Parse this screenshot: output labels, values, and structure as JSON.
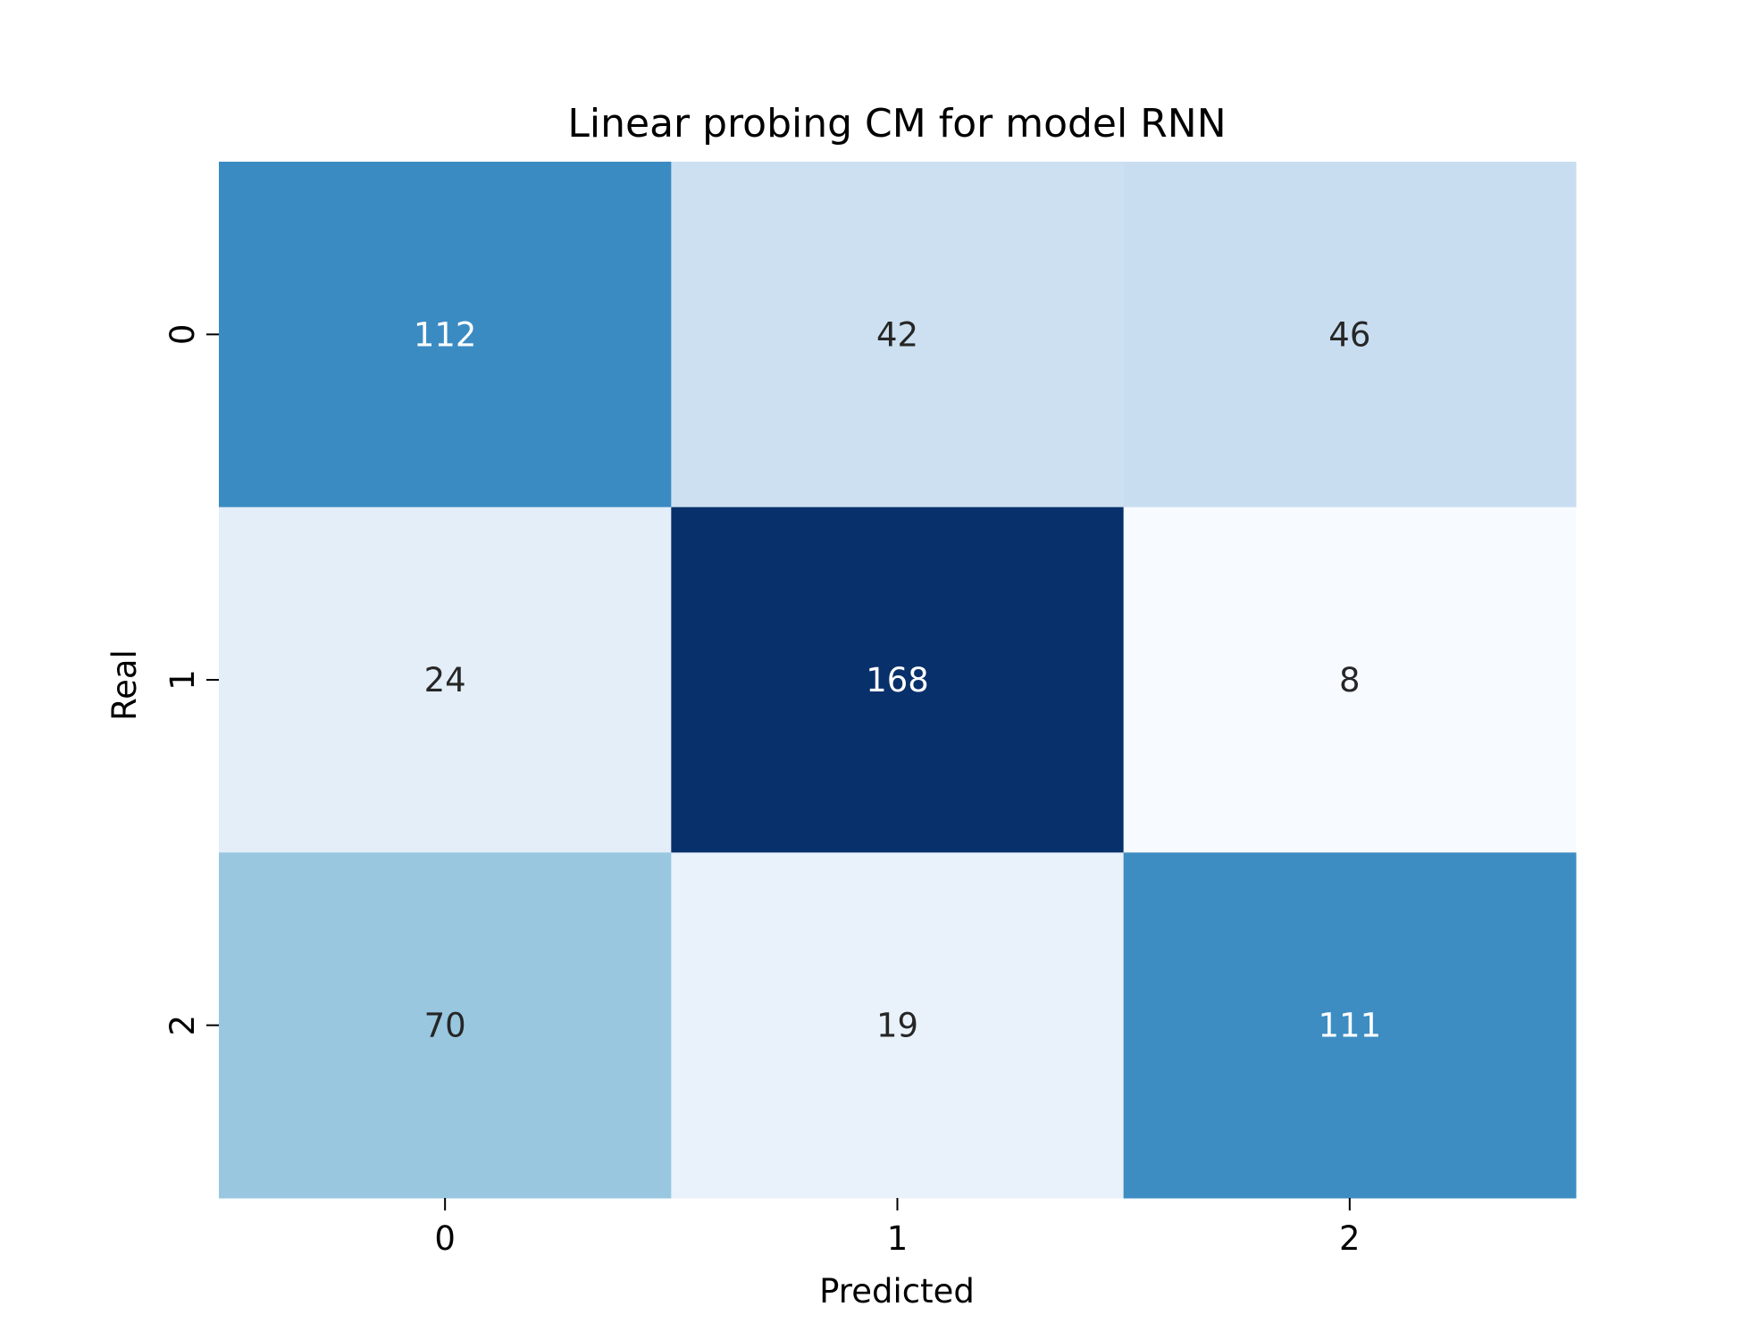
{
  "chart_data": {
    "type": "heatmap",
    "title": "Linear probing CM for model RNN",
    "xlabel": "Predicted",
    "ylabel": "Real",
    "x_categories": [
      "0",
      "1",
      "2"
    ],
    "y_categories": [
      "0",
      "1",
      "2"
    ],
    "values": [
      [
        112,
        42,
        46
      ],
      [
        24,
        168,
        8
      ],
      [
        70,
        19,
        111
      ]
    ],
    "colormap": "Blues",
    "color_range": [
      8,
      168
    ],
    "colorbar": false,
    "grid": false
  }
}
